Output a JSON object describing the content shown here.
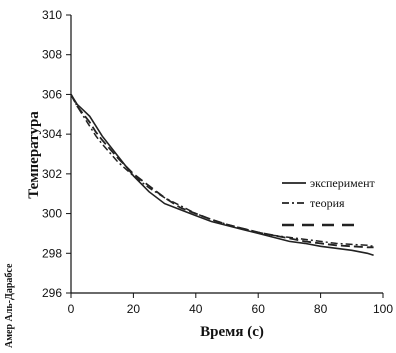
{
  "chart_data": {
    "type": "line",
    "title": "",
    "xlabel": "Время (с)",
    "ylabel": "Температура",
    "xlim": [
      0,
      100
    ],
    "ylim": [
      296,
      310
    ],
    "xticks": [
      0,
      20,
      40,
      60,
      80,
      100
    ],
    "yticks": [
      296,
      298,
      300,
      302,
      304,
      306,
      308,
      310
    ],
    "grid": false,
    "legend_position": "right",
    "series": [
      {
        "name": "эксперимент",
        "style": "solid",
        "color": "#222222",
        "x": [
          0,
          2,
          4,
          6,
          8,
          10,
          15,
          20,
          25,
          30,
          35,
          40,
          45,
          50,
          55,
          60,
          65,
          70,
          75,
          80,
          85,
          90,
          95,
          97
        ],
        "y": [
          306.0,
          305.5,
          305.2,
          304.9,
          304.4,
          303.9,
          302.9,
          301.9,
          301.1,
          300.5,
          300.2,
          299.9,
          299.6,
          299.4,
          299.2,
          299.0,
          298.8,
          298.6,
          298.5,
          298.35,
          298.25,
          298.15,
          298.0,
          297.9
        ]
      },
      {
        "name": "теория",
        "style": "dashdot",
        "color": "#222222",
        "x": [
          0,
          2,
          4,
          6,
          8,
          10,
          15,
          20,
          25,
          30,
          35,
          40,
          45,
          50,
          55,
          60,
          65,
          70,
          75,
          80,
          85,
          90,
          95,
          97
        ],
        "y": [
          306.0,
          305.4,
          304.9,
          304.4,
          303.9,
          303.5,
          302.6,
          301.9,
          301.3,
          300.8,
          300.4,
          300.0,
          299.7,
          299.45,
          299.25,
          299.05,
          298.9,
          298.8,
          298.7,
          298.6,
          298.5,
          298.45,
          298.4,
          298.35
        ]
      },
      {
        "name": "",
        "style": "dashed",
        "color": "#222222",
        "x": [
          0,
          2,
          4,
          6,
          8,
          10,
          15,
          20,
          25,
          30,
          35,
          40,
          45,
          50,
          55,
          60,
          65,
          70,
          75,
          80,
          85,
          90,
          95,
          97
        ],
        "y": [
          306.0,
          305.4,
          305.0,
          304.6,
          304.1,
          303.7,
          302.8,
          302.0,
          301.4,
          300.8,
          300.3,
          300.0,
          299.7,
          299.45,
          299.25,
          299.05,
          298.9,
          298.75,
          298.6,
          298.5,
          298.4,
          298.35,
          298.3,
          298.3
        ]
      }
    ]
  },
  "side_note": "Амер Аль-Дарабсе"
}
